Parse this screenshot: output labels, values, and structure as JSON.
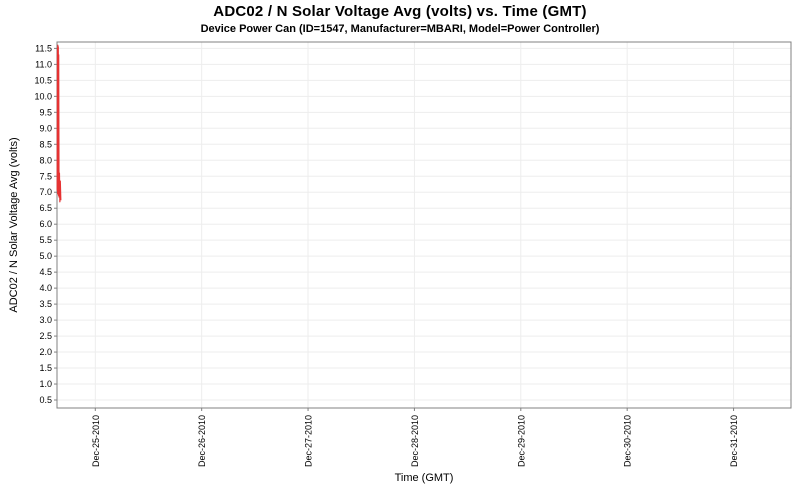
{
  "chart_data": {
    "type": "line",
    "title": "ADC02 / N Solar Voltage Avg (volts) vs. Time (GMT)",
    "subtitle": "Device Power Can (ID=1547, Manufacturer=MBARI, Model=Power Controller)",
    "xlabel": "Time (GMT)",
    "ylabel": "ADC02 / N Solar Voltage Avg (volts)",
    "grid": true,
    "legend": "none",
    "xlim_days": [
      0,
      6.9
    ],
    "ylim": [
      0.25,
      11.7
    ],
    "y_ticks": [
      0.5,
      1.0,
      1.5,
      2.0,
      2.5,
      3.0,
      3.5,
      4.0,
      4.5,
      5.0,
      5.5,
      6.0,
      6.5,
      7.0,
      7.5,
      8.0,
      8.5,
      9.0,
      9.5,
      10.0,
      10.5,
      11.0,
      11.5
    ],
    "x_ticks": [
      {
        "pos": 0.36,
        "label": "Dec-25-2010"
      },
      {
        "pos": 1.36,
        "label": "Dec-26-2010"
      },
      {
        "pos": 2.36,
        "label": "Dec-27-2010"
      },
      {
        "pos": 3.36,
        "label": "Dec-28-2010"
      },
      {
        "pos": 4.36,
        "label": "Dec-29-2010"
      },
      {
        "pos": 5.36,
        "label": "Dec-30-2010"
      },
      {
        "pos": 6.36,
        "label": "Dec-31-2010"
      }
    ],
    "colors": {
      "series": "#e63232",
      "grid": "#ededed",
      "axis": "#808080",
      "text": "#000000",
      "plot_background": "#ffffff"
    },
    "series": [
      {
        "name": "ADC02 / N Solar Voltage Avg",
        "color": "#e63232",
        "points": [
          [
            0.002,
            7.05
          ],
          [
            0.004,
            11.5
          ],
          [
            0.006,
            6.95
          ],
          [
            0.008,
            11.6
          ],
          [
            0.01,
            7.1
          ],
          [
            0.012,
            11.55
          ],
          [
            0.014,
            6.9
          ],
          [
            0.016,
            11.3
          ],
          [
            0.019,
            6.85
          ],
          [
            0.023,
            7.6
          ],
          [
            0.027,
            6.7
          ],
          [
            0.031,
            7.35
          ],
          [
            0.036,
            6.75
          ]
        ]
      }
    ]
  }
}
